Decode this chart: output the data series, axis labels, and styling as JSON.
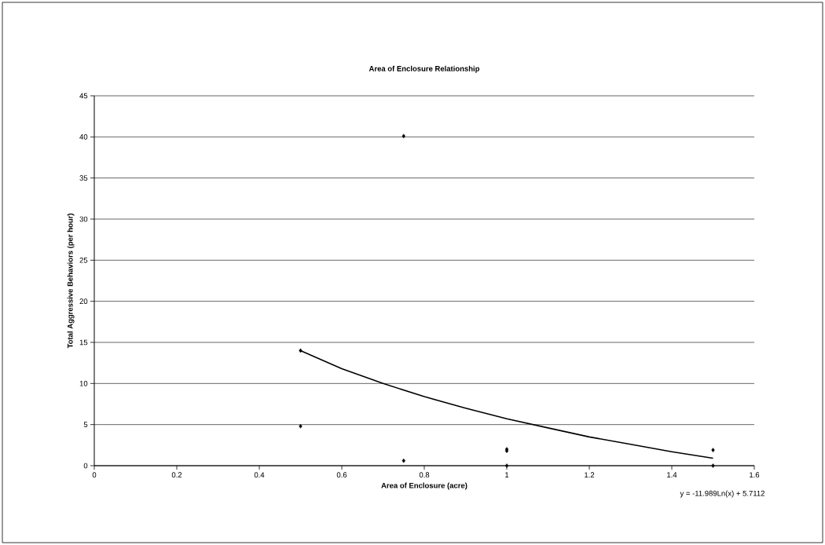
{
  "chart_data": {
    "type": "scatter",
    "title": "Area of Enclosure Relationship",
    "xlabel": "Area of Enclosure (acre)",
    "ylabel": "Total Aggressive Behaviors (per hour)",
    "series": [
      {
        "color": "#000000",
        "marker": "diamond",
        "x": [
          0.5,
          0.5,
          0.75,
          0.75,
          1,
          1,
          1,
          1.5,
          1.5
        ],
        "values": [
          14,
          4.8,
          40.1,
          0.6,
          2.0,
          1.8,
          0,
          1.9,
          0
        ]
      },
      {
        "type": "line",
        "color": "#000000",
        "marker": "none",
        "line_style": "solid",
        "x": [
          0.5,
          0.6,
          0.7,
          0.8,
          0.9,
          1.0,
          1.1,
          1.2,
          1.3,
          1.4,
          1.5
        ],
        "values": [
          14.0,
          11.8,
          10.0,
          8.4,
          7.0,
          5.7,
          4.6,
          3.5,
          2.6,
          1.7,
          0.9
        ]
      }
    ],
    "xlim": [
      0,
      1.6
    ],
    "ylim": [
      0,
      45
    ],
    "xticks": [
      0,
      0.2,
      0.4,
      0.6,
      0.8,
      1,
      1.2,
      1.4,
      1.6
    ],
    "yticks": [
      0,
      5,
      10,
      15,
      20,
      25,
      30,
      35,
      40,
      45
    ],
    "grid": "y",
    "annotations": [
      "y = -11.989Ln(x) + 5.7112"
    ]
  }
}
